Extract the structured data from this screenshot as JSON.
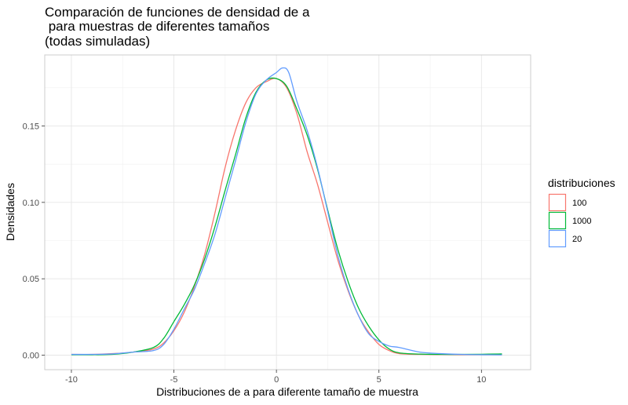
{
  "chart_data": {
    "type": "line",
    "title_lines": [
      "Comparación de funciones de densidad de a",
      " para muestras de diferentes tamaños",
      "(todas simuladas)"
    ],
    "xlabel": "Distribuciones de a para diferente tamaño de muestra",
    "ylabel": "Densidades",
    "xlim": [
      -11.3,
      12.4
    ],
    "ylim": [
      -0.0095,
      0.1965
    ],
    "x_ticks": [
      -10,
      -5,
      0,
      5,
      10
    ],
    "x_tick_labels": [
      "-10",
      "-5",
      "0",
      "5",
      "10"
    ],
    "y_ticks": [
      0,
      0.05,
      0.1,
      0.15
    ],
    "y_tick_labels": [
      "0.00",
      "0.05",
      "0.10",
      "0.15"
    ],
    "grid": true,
    "legend": {
      "title": "distribuciones",
      "position": "right",
      "entries": [
        {
          "label": "100",
          "color": "#F8766D"
        },
        {
          "label": "1000",
          "color": "#00BA38"
        },
        {
          "label": "20",
          "color": "#619CFF"
        }
      ]
    },
    "series": [
      {
        "name": "100",
        "color": "#F8766D",
        "x": [
          -10,
          -9,
          -8,
          -7,
          -6,
          -5.5,
          -5,
          -4.5,
          -4,
          -3.5,
          -3,
          -2.5,
          -2,
          -1.5,
          -1,
          -0.5,
          0,
          0.5,
          1,
          1.5,
          2,
          2.5,
          3,
          3.5,
          4,
          4.5,
          5,
          5.5,
          6,
          7,
          8,
          9,
          10,
          11
        ],
        "y": [
          0.0005,
          0.0005,
          0.001,
          0.002,
          0.004,
          0.008,
          0.016,
          0.028,
          0.045,
          0.066,
          0.093,
          0.123,
          0.147,
          0.165,
          0.175,
          0.179,
          0.181,
          0.175,
          0.158,
          0.133,
          0.112,
          0.087,
          0.062,
          0.042,
          0.026,
          0.015,
          0.007,
          0.003,
          0.001,
          0.0005,
          0.0004,
          0.0003,
          0.0003,
          0.0003
        ]
      },
      {
        "name": "1000",
        "color": "#00BA38",
        "x": [
          -10,
          -9,
          -8,
          -7,
          -6,
          -5.5,
          -5,
          -4.5,
          -4,
          -3.5,
          -3,
          -2.5,
          -2,
          -1.5,
          -1,
          -0.5,
          0,
          0.5,
          1,
          1.5,
          2,
          2.5,
          3,
          3.5,
          4,
          4.5,
          5,
          5.5,
          6,
          7,
          8,
          9,
          10,
          11
        ],
        "y": [
          0.0003,
          0.0003,
          0.0005,
          0.002,
          0.005,
          0.011,
          0.022,
          0.033,
          0.046,
          0.063,
          0.084,
          0.108,
          0.131,
          0.155,
          0.172,
          0.18,
          0.181,
          0.176,
          0.161,
          0.144,
          0.122,
          0.095,
          0.069,
          0.048,
          0.031,
          0.019,
          0.01,
          0.004,
          0.0015,
          0.0007,
          0.0005,
          0.0005,
          0.0006,
          0.0008
        ]
      },
      {
        "name": "20",
        "color": "#619CFF",
        "x": [
          -10,
          -9,
          -8,
          -7,
          -6,
          -5.5,
          -5,
          -4.5,
          -4,
          -3.5,
          -3,
          -2.5,
          -2,
          -1.5,
          -1,
          -0.5,
          0,
          0.3,
          0.6,
          1,
          1.5,
          2,
          2.5,
          3,
          3.5,
          4,
          4.5,
          5,
          5.5,
          6,
          7,
          8,
          9,
          10,
          11
        ],
        "y": [
          0.0005,
          0.0005,
          0.0008,
          0.002,
          0.003,
          0.007,
          0.017,
          0.03,
          0.043,
          0.06,
          0.079,
          0.103,
          0.127,
          0.152,
          0.171,
          0.18,
          0.185,
          0.188,
          0.185,
          0.166,
          0.147,
          0.123,
          0.094,
          0.065,
          0.043,
          0.026,
          0.014,
          0.009,
          0.006,
          0.005,
          0.002,
          0.001,
          0.0005,
          0.0003,
          0.0002
        ]
      }
    ]
  }
}
